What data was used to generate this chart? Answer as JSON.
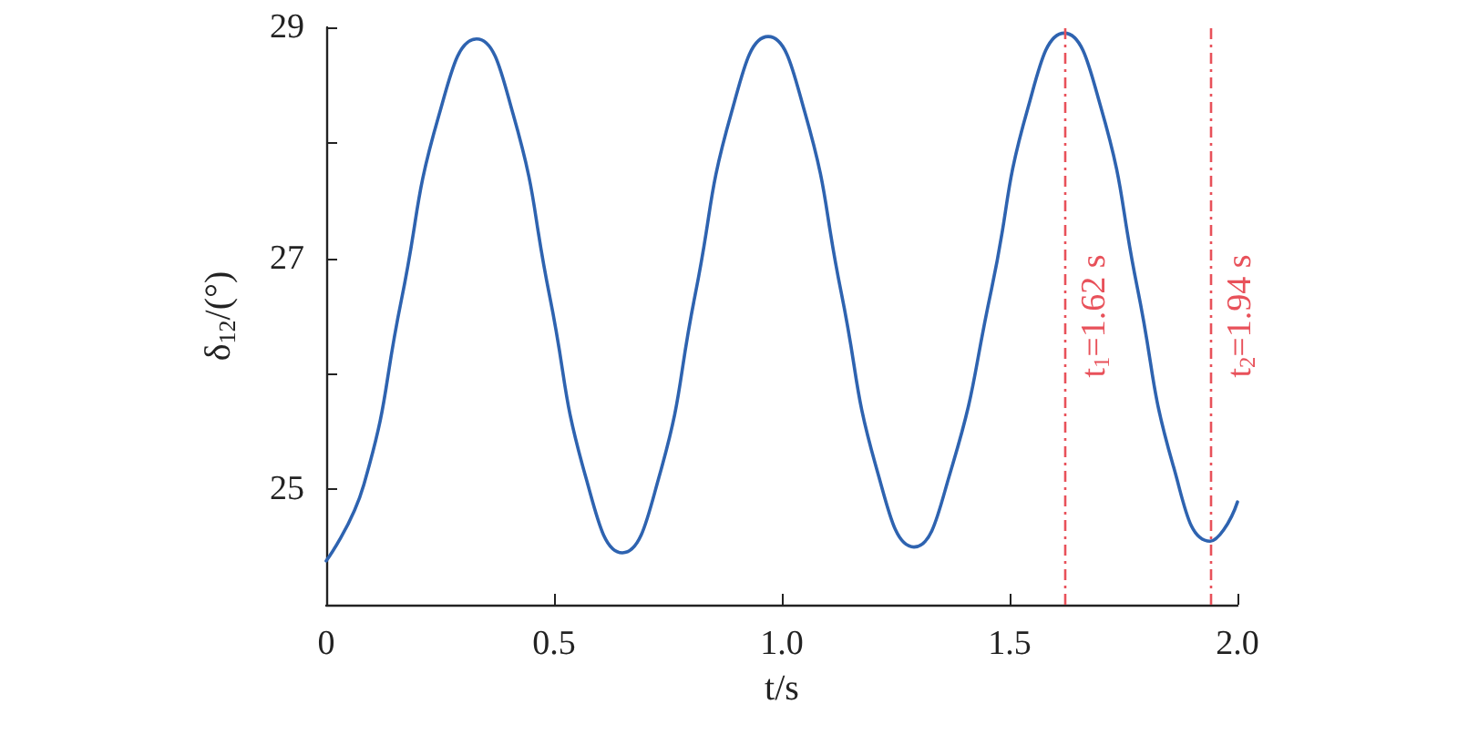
{
  "chart_data": {
    "type": "line",
    "xlabel": "t/s",
    "ylabel": "δ$_{12}$/(°)",
    "x": [
      0,
      0.0825,
      0.165,
      0.2475,
      0.33,
      0.41,
      0.49,
      0.57,
      0.65,
      0.73,
      0.81,
      0.89,
      0.97,
      1.05,
      1.13,
      1.21,
      1.29,
      1.37,
      1.46,
      1.54,
      1.62,
      1.7,
      1.78,
      1.86,
      1.94,
      1.97,
      2.0
    ],
    "series": [
      {
        "color": "#2e63b0",
        "values": [
          24.38,
          25.04,
          26.64,
          28.24,
          28.9,
          28.25,
          26.68,
          25.1,
          24.45,
          25.1,
          26.69,
          28.27,
          28.92,
          28.27,
          26.71,
          25.15,
          24.5,
          25.15,
          26.73,
          28.3,
          28.95,
          28.31,
          26.75,
          25.19,
          24.55,
          24.65,
          24.89
        ]
      }
    ],
    "xlim": [
      0,
      2.0
    ],
    "xticks": [
      0,
      0.5,
      {
        "value": 1,
        "label": "1.0"
      },
      1.5,
      {
        "value": 2,
        "label": "2.0"
      }
    ],
    "ylim": [
      24,
      29
    ],
    "yticks": [
      25,
      {
        "value": 26,
        "label": null
      },
      27,
      {
        "value": 28,
        "label": null
      },
      29
    ],
    "grid": false,
    "marker": "none",
    "line_style": "solid",
    "ref_lines": [
      {
        "axis": "x",
        "value": 1.62,
        "label": "t$_{1}$=1.62 s",
        "color": "#e8515a",
        "line_style": "dashed"
      },
      {
        "axis": "x",
        "value": 1.94,
        "label": "t$_{2}$=1.94 s",
        "color": "#e8515a",
        "line_style": "dashed"
      }
    ]
  }
}
